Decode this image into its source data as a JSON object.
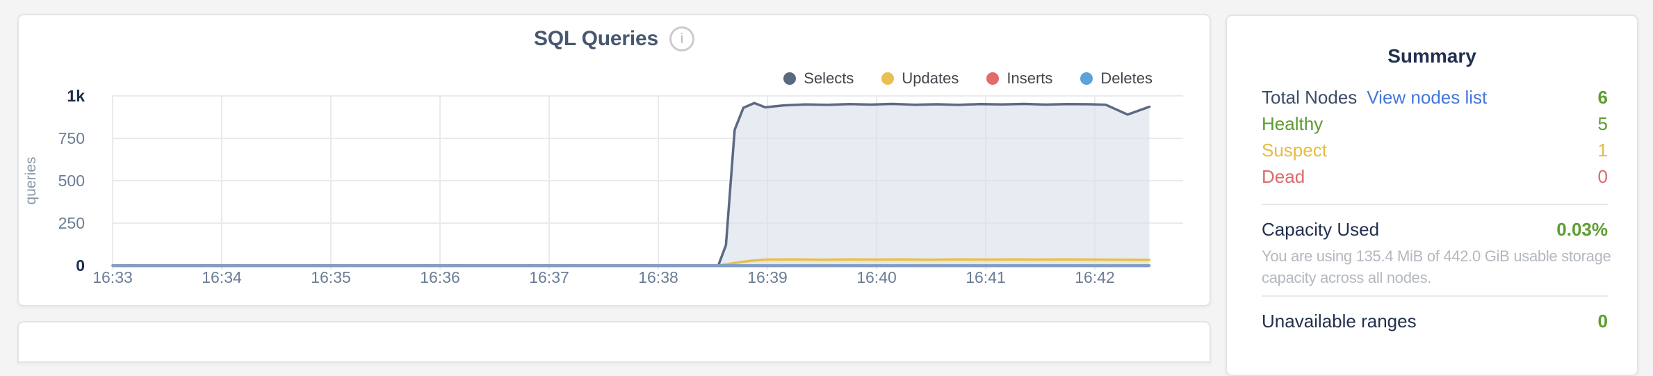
{
  "chart_card": {
    "title": "SQL Queries",
    "info_glyph": "i",
    "legend": [
      {
        "label": "Selects",
        "color": "#5a6880"
      },
      {
        "label": "Updates",
        "color": "#e7c050"
      },
      {
        "label": "Inserts",
        "color": "#e26b6b"
      },
      {
        "label": "Deletes",
        "color": "#5da2d9"
      }
    ]
  },
  "chart_data": {
    "type": "area",
    "title": "SQL Queries",
    "xlabel": "",
    "ylabel": "queries",
    "ylim": [
      0,
      1000
    ],
    "x_range_minutes": [
      0,
      9.5
    ],
    "grid": true,
    "legend_position": "top-right",
    "x_ticks": [
      "16:33",
      "16:34",
      "16:35",
      "16:36",
      "16:37",
      "16:38",
      "16:39",
      "16:40",
      "16:41",
      "16:42"
    ],
    "y_ticks": [
      {
        "label": "1k",
        "value": 1000,
        "emph": true
      },
      {
        "label": "750",
        "value": 750,
        "emph": false
      },
      {
        "label": "500",
        "value": 500,
        "emph": false
      },
      {
        "label": "250",
        "value": 250,
        "emph": false
      },
      {
        "label": "0",
        "value": 0,
        "emph": true
      }
    ],
    "axis_colors": {
      "grid": "#e9eaec",
      "baseline": "#8ea4bf",
      "tick_minor": "#6b7d95",
      "tick_emph": "#1b2b4b",
      "ylabel": "#8a97a8"
    },
    "series": [
      {
        "name": "Selects",
        "color": "#5b6981",
        "fill": "#d9deea",
        "fill_opacity": 0.62,
        "points": [
          [
            0,
            0
          ],
          [
            1,
            0
          ],
          [
            2,
            0
          ],
          [
            3,
            0
          ],
          [
            4,
            0
          ],
          [
            5,
            0
          ],
          [
            5.3,
            0
          ],
          [
            5.55,
            0
          ],
          [
            5.62,
            120
          ],
          [
            5.7,
            800
          ],
          [
            5.78,
            930
          ],
          [
            5.88,
            958
          ],
          [
            5.98,
            933
          ],
          [
            6.15,
            944
          ],
          [
            6.35,
            950
          ],
          [
            6.55,
            947
          ],
          [
            6.75,
            952
          ],
          [
            6.95,
            949
          ],
          [
            7.15,
            953
          ],
          [
            7.35,
            948
          ],
          [
            7.55,
            951
          ],
          [
            7.75,
            947
          ],
          [
            7.95,
            952
          ],
          [
            8.15,
            950
          ],
          [
            8.35,
            953
          ],
          [
            8.55,
            949
          ],
          [
            8.75,
            952
          ],
          [
            8.95,
            951
          ],
          [
            9.1,
            948
          ],
          [
            9.3,
            890
          ],
          [
            9.5,
            936
          ]
        ]
      },
      {
        "name": "Updates",
        "color": "#e8bf4d",
        "fill": "#f0e3bb",
        "fill_opacity": 0.55,
        "points": [
          [
            0,
            0
          ],
          [
            1,
            0
          ],
          [
            2,
            0
          ],
          [
            3,
            0
          ],
          [
            4,
            0
          ],
          [
            5,
            0
          ],
          [
            5.55,
            0
          ],
          [
            5.7,
            15
          ],
          [
            5.85,
            28
          ],
          [
            6.0,
            35
          ],
          [
            6.25,
            36
          ],
          [
            6.5,
            34
          ],
          [
            6.75,
            36
          ],
          [
            7.0,
            35
          ],
          [
            7.25,
            36
          ],
          [
            7.5,
            34
          ],
          [
            7.75,
            36
          ],
          [
            8.0,
            35
          ],
          [
            8.25,
            36
          ],
          [
            8.5,
            35
          ],
          [
            8.75,
            36
          ],
          [
            9.0,
            35
          ],
          [
            9.25,
            34
          ],
          [
            9.5,
            33
          ]
        ]
      },
      {
        "name": "Inserts",
        "color": "#e26b6b",
        "fill": null,
        "points": [
          [
            0,
            0
          ],
          [
            9.5,
            0
          ]
        ]
      },
      {
        "name": "Deletes",
        "color": "#6aa4d8",
        "fill": null,
        "points": [
          [
            0,
            0
          ],
          [
            9.5,
            0
          ]
        ]
      }
    ]
  },
  "summary": {
    "title": "Summary",
    "rows": [
      {
        "label": "Total Nodes",
        "link": "View nodes list",
        "value": "6",
        "label_color": "#3c4c68",
        "value_color": "#5d9e33",
        "value_bold": true
      },
      {
        "label": "Healthy",
        "value": "5",
        "label_color": "#5b9c32",
        "value_color": "#5b9c32",
        "value_bold": false
      },
      {
        "label": "Suspect",
        "value": "1",
        "label_color": "#e6bc43",
        "value_color": "#e6bc43",
        "value_bold": false
      },
      {
        "label": "Dead",
        "value": "0",
        "label_color": "#dd6a6a",
        "value_color": "#dd6a6a",
        "value_bold": false
      }
    ],
    "capacity": {
      "label": "Capacity Used",
      "value": "0.03%",
      "desc": "You are using 135.4 MiB of 442.0 GiB usable storage capacity across all nodes."
    },
    "unavailable": {
      "label": "Unavailable ranges",
      "value": "0"
    }
  }
}
